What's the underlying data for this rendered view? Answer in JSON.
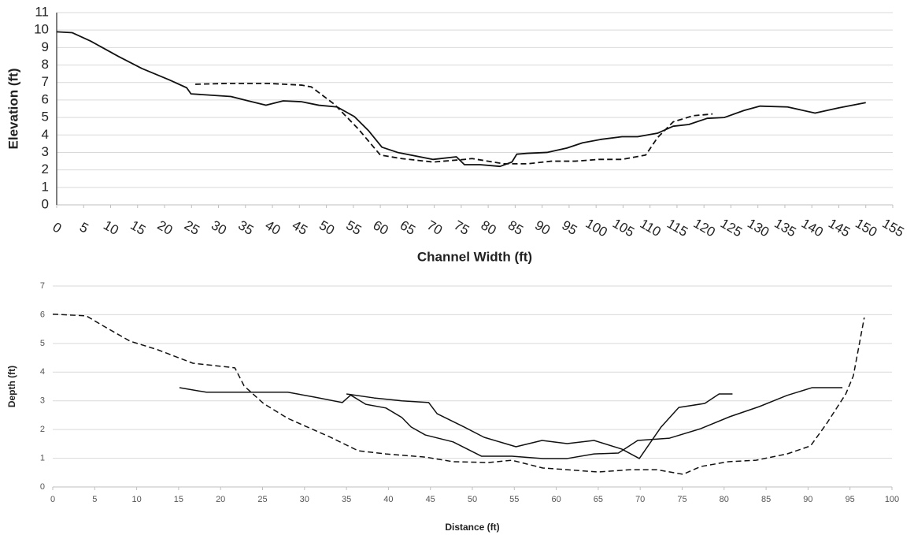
{
  "chart_data": [
    {
      "type": "line",
      "xlabel": "Channel Width (ft)",
      "ylabel": "Elevation (ft)",
      "xlim": [
        0,
        155
      ],
      "ylim": [
        0,
        11
      ],
      "xticks": [
        0,
        5,
        10,
        15,
        20,
        25,
        30,
        35,
        40,
        45,
        50,
        55,
        60,
        65,
        70,
        75,
        80,
        85,
        90,
        95,
        100,
        105,
        110,
        115,
        120,
        125,
        130,
        135,
        140,
        145,
        150,
        155
      ],
      "yticks": [
        0,
        1,
        2,
        3,
        4,
        5,
        6,
        7,
        8,
        9,
        10,
        11
      ],
      "grid": true,
      "series": [
        {
          "color": "#111111",
          "line_style": "solid",
          "x": [
            0,
            2.9,
            6.3,
            11.4,
            15.8,
            20.9,
            24.1,
            24.9,
            32.3,
            35.5,
            38.8,
            42,
            45.4,
            48.6,
            52,
            55.2,
            57.8,
            60.3,
            63.2,
            69.8,
            74.1,
            75.6,
            78.5,
            82.2,
            84.4,
            85.3,
            87.3,
            90.9,
            94.6,
            97.5,
            101,
            104.8,
            107.7,
            111.4,
            114.3,
            117.2,
            120.6,
            123.8,
            127.4,
            130.4,
            135.5,
            140.6,
            145,
            150
          ],
          "values": [
            9.9,
            9.85,
            9.37,
            8.5,
            7.8,
            7.15,
            6.7,
            6.35,
            6.2,
            5.95,
            5.7,
            5.95,
            5.9,
            5.7,
            5.6,
            5.05,
            4.25,
            3.3,
            3.0,
            2.6,
            2.75,
            2.3,
            2.3,
            2.2,
            2.45,
            2.9,
            2.95,
            3.0,
            3.25,
            3.55,
            3.75,
            3.9,
            3.9,
            4.1,
            4.5,
            4.6,
            4.95,
            5.0,
            5.4,
            5.65,
            5.6,
            5.25,
            5.55,
            5.85
          ]
        },
        {
          "color": "#111111",
          "line_style": "dashed",
          "x": [
            25.7,
            31.8,
            39.1,
            45.4,
            47.2,
            51.5,
            55.9,
            60,
            63.9,
            69.8,
            75.6,
            77,
            82.9,
            87.3,
            91.7,
            96.1,
            100.5,
            104.8,
            109.2,
            111.4,
            114.3,
            118,
            121.6
          ],
          "values": [
            6.9,
            6.95,
            6.95,
            6.85,
            6.75,
            5.75,
            4.35,
            2.85,
            2.65,
            2.45,
            2.6,
            2.65,
            2.35,
            2.35,
            2.5,
            2.5,
            2.6,
            2.6,
            2.85,
            3.85,
            4.75,
            5.1,
            5.2
          ]
        }
      ]
    },
    {
      "type": "line",
      "xlabel": "Distance (ft)",
      "ylabel": "Depth (ft)",
      "xlim": [
        0,
        100
      ],
      "ylim": [
        0,
        7
      ],
      "xticks": [
        0,
        5,
        10,
        15,
        20,
        25,
        30,
        35,
        40,
        45,
        50,
        55,
        60,
        65,
        70,
        75,
        80,
        85,
        90,
        95,
        100
      ],
      "yticks": [
        0,
        1,
        2,
        3,
        4,
        5,
        6,
        7
      ],
      "grid": true,
      "series": [
        {
          "color": "#111111",
          "line_style": "solid",
          "x": [
            15.1,
            18.3,
            22.3,
            28,
            31.2,
            34.5,
            35.5,
            37.3,
            39.7,
            41.6,
            42.7,
            44.4,
            47.7,
            51.1,
            54.7,
            58.4,
            61.3,
            64.5,
            67.4,
            69.7,
            73.5,
            77.2,
            80.7,
            84.2,
            87.5,
            90.5,
            94.1
          ],
          "values": [
            3.46,
            3.3,
            3.3,
            3.3,
            3.13,
            2.94,
            3.2,
            2.88,
            2.75,
            2.42,
            2.09,
            1.81,
            1.57,
            1.07,
            1.07,
            0.99,
            0.99,
            1.15,
            1.18,
            1.62,
            1.7,
            2.03,
            2.45,
            2.8,
            3.19,
            3.46,
            3.46
          ]
        },
        {
          "color": "#111111",
          "line_style": "solid",
          "x": [
            35,
            38.3,
            41.6,
            44.8,
            45.8,
            49,
            51.4,
            55.2,
            58.3,
            61.3,
            64.5,
            67.8,
            69.9,
            72.5,
            74.6,
            77.7,
            79.4,
            81
          ],
          "values": [
            3.24,
            3.1,
            3.0,
            2.94,
            2.55,
            2.09,
            1.73,
            1.4,
            1.62,
            1.51,
            1.62,
            1.32,
            0.99,
            2.09,
            2.77,
            2.91,
            3.24,
            3.24
          ]
        },
        {
          "color": "#111111",
          "line_style": "dashed",
          "x": [
            0,
            4,
            5.9,
            9.2,
            12.5,
            16.7,
            21.7,
            22.8,
            25.1,
            28,
            33.1,
            36.4,
            39.7,
            44.4,
            47.7,
            51.9,
            54.7,
            58.4,
            61.3,
            65,
            68.8,
            72,
            75.1,
            77.2,
            80.5,
            83.8,
            87.5,
            90.3,
            92.2,
            94.5,
            95.4,
            96.7
          ],
          "values": [
            6.02,
            5.96,
            5.63,
            5.08,
            4.78,
            4.31,
            4.15,
            3.52,
            2.91,
            2.39,
            1.73,
            1.26,
            1.15,
            1.04,
            0.88,
            0.85,
            0.93,
            0.66,
            0.6,
            0.52,
            0.6,
            0.6,
            0.44,
            0.71,
            0.88,
            0.93,
            1.15,
            1.43,
            2.2,
            3.24,
            3.87,
            5.9
          ]
        }
      ]
    }
  ]
}
